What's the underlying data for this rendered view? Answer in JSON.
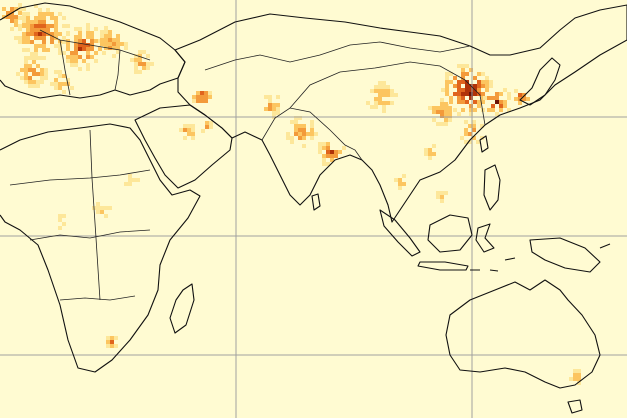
{
  "map": {
    "background_color": "#fffbd2",
    "coastline_color": "#111111",
    "gridline_color": "#a0a0a0",
    "colormap": [
      "#fffbd2",
      "#fde79a",
      "#fcc560",
      "#f39a3a",
      "#e0641d",
      "#b03308",
      "#6b1304",
      "#1a0401"
    ]
  }
}
